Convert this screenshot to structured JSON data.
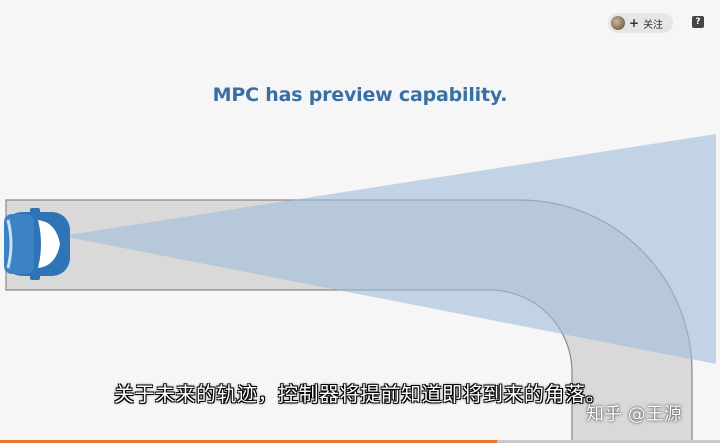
{
  "header": {
    "follow_label": "关注",
    "follow_plus": "+",
    "help_label": "?"
  },
  "slide": {
    "title": "MPC has preview capability."
  },
  "subtitle": {
    "text": "关于未来的轨迹，控制器将提前知道即将到来的角落。"
  },
  "watermark": {
    "text": "知乎 @王源"
  },
  "playback": {
    "progress_fraction": 0.69
  },
  "colors": {
    "title": "#3a6fa6",
    "road": "#d9d9d9",
    "preview_cone": "#a9c4dc",
    "car_body": "#2f74b5",
    "progress": "#e8792a"
  },
  "icons": {
    "avatar": "avatar-icon",
    "help": "help-icon",
    "car": "car-icon"
  }
}
